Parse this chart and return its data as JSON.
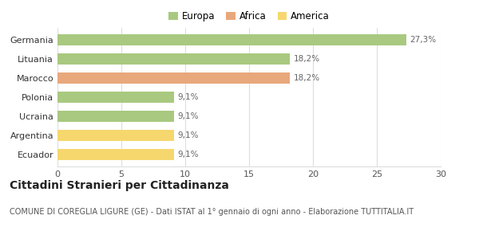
{
  "categories": [
    "Ecuador",
    "Argentina",
    "Ucraina",
    "Polonia",
    "Marocco",
    "Lituania",
    "Germania"
  ],
  "values": [
    9.1,
    9.1,
    9.1,
    9.1,
    18.2,
    18.2,
    27.3
  ],
  "colors": [
    "#f5d76e",
    "#f5d76e",
    "#a8c97f",
    "#a8c97f",
    "#e8a87c",
    "#a8c97f",
    "#a8c97f"
  ],
  "labels": [
    "9,1%",
    "9,1%",
    "9,1%",
    "9,1%",
    "18,2%",
    "18,2%",
    "27,3%"
  ],
  "legend": [
    {
      "label": "Europa",
      "color": "#a8c97f"
    },
    {
      "label": "Africa",
      "color": "#e8a87c"
    },
    {
      "label": "America",
      "color": "#f5d76e"
    }
  ],
  "xlim": [
    0,
    30
  ],
  "xticks": [
    0,
    5,
    10,
    15,
    20,
    25,
    30
  ],
  "title": "Cittadini Stranieri per Cittadinanza",
  "subtitle": "COMUNE DI COREGLIA LIGURE (GE) - Dati ISTAT al 1° gennaio di ogni anno - Elaborazione TUTTITALIA.IT",
  "background_color": "#ffffff",
  "grid_color": "#dddddd",
  "bar_edge_color": "none",
  "title_fontsize": 10,
  "subtitle_fontsize": 7,
  "label_fontsize": 7.5,
  "tick_fontsize": 8,
  "legend_fontsize": 8.5
}
